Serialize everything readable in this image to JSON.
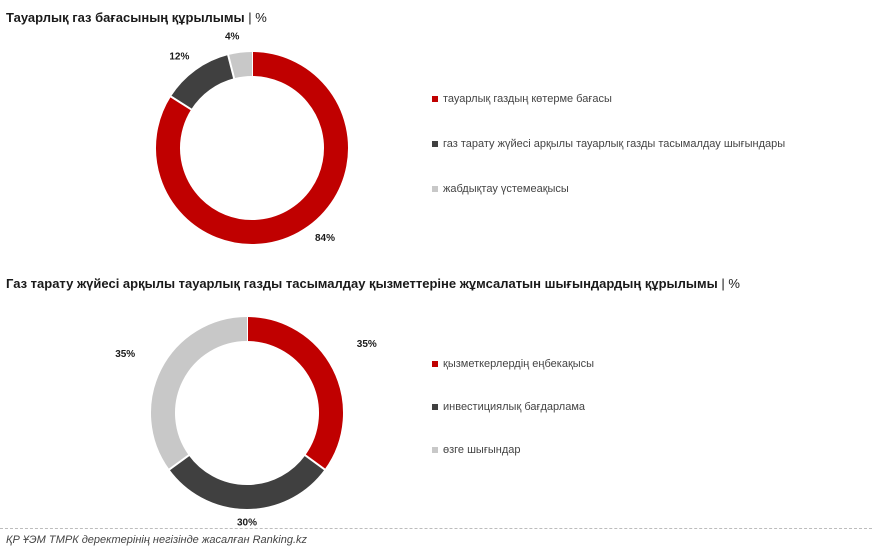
{
  "chart_data": [
    {
      "type": "pie",
      "title": "Тауарлық газ бағасының құрылымы",
      "unit": "%",
      "categories": [
        "тауарлық газдың көтерме бағасы",
        "газ тарату жүйесі арқылы тауарлық газды тасымалдау шығындары",
        "жабдықтау үстемеақысы"
      ],
      "values": [
        84,
        12,
        4
      ],
      "labels": [
        "84%",
        "12%",
        "4%"
      ],
      "colors": [
        "#c00000",
        "#404040",
        "#c8c8c8"
      ],
      "legend": "right"
    },
    {
      "type": "pie",
      "title": "Газ тарату жүйесі арқылы тауарлық газды тасымалдау қызметтеріне жұмсалатын шығындардың құрылымы",
      "unit": "%",
      "categories": [
        "қызметкерлердің еңбекақысы",
        "инвестициялық бағдарлама",
        "өзге шығындар"
      ],
      "values": [
        35,
        30,
        35
      ],
      "labels": [
        "35%",
        "30%",
        "35%"
      ],
      "colors": [
        "#c00000",
        "#404040",
        "#c8c8c8"
      ],
      "legend": "right"
    }
  ],
  "footer": {
    "source": "ҚР ҰЭМ ТМРК деректерінің негізінде жасалған Ranking.kz"
  }
}
